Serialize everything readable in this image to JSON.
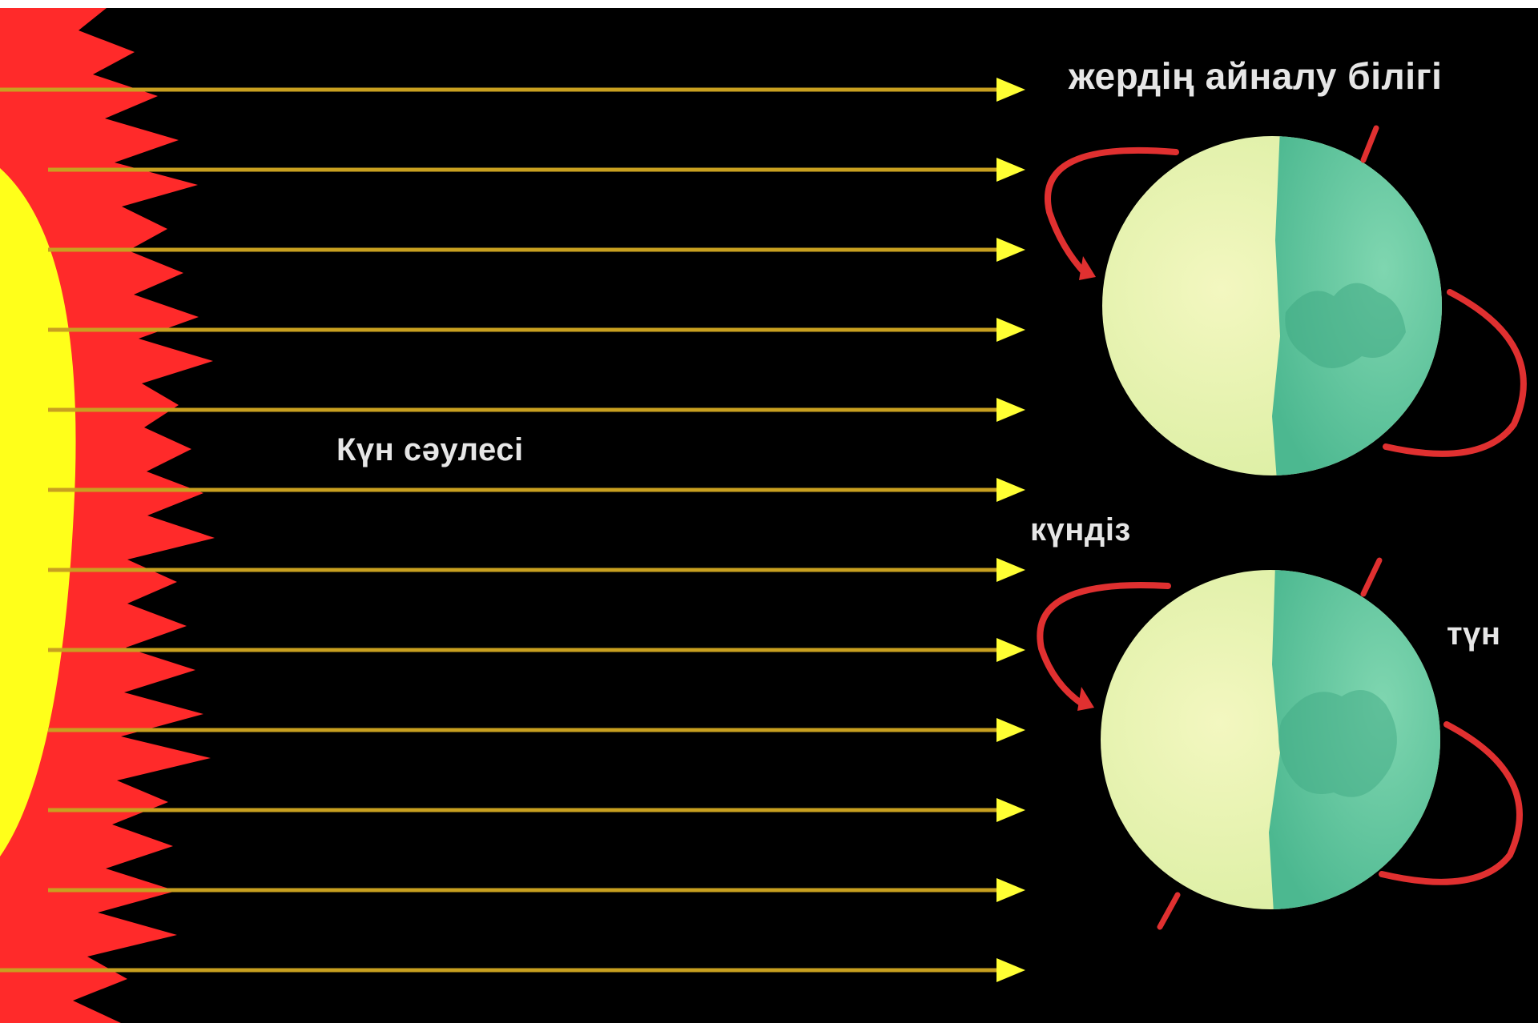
{
  "labels": {
    "rotation_axis": "жердің айналу білігі",
    "sun_rays": "Күн сәулесі",
    "day": "күндіз",
    "night": "түн"
  },
  "colors": {
    "background": "#000000",
    "frame": "#ffffff",
    "sun_core": "#ffff1a",
    "sun_corona": "#ff2a2a",
    "ray_line": "#c8a020",
    "ray_arrowhead": "#ffff33",
    "earth_day_side": "#e6f2a8",
    "earth_night_side": "#5cc7a0",
    "rotation_arrow": "#e03030",
    "label_text": "#e6e6e6"
  },
  "diagram": {
    "subject": "sun-rays-and-earth-day-night",
    "ray_count": 12,
    "earth_count": 2
  }
}
